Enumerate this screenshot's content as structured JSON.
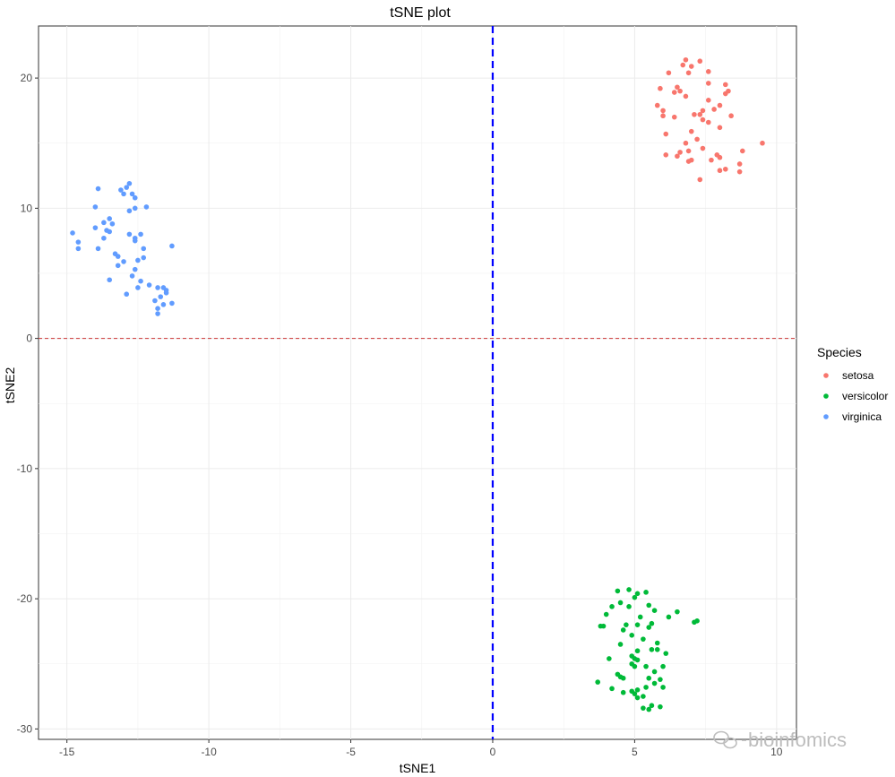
{
  "chart_data": {
    "type": "scatter",
    "title": "tSNE plot",
    "xlabel": "tSNE1",
    "ylabel": "tSNE2",
    "xlim": [
      -16,
      10.7
    ],
    "ylim": [
      -30.8,
      24
    ],
    "x_ticks": [
      -15,
      -10,
      -5,
      0,
      5,
      10
    ],
    "y_ticks": [
      -30,
      -20,
      -10,
      0,
      10,
      20
    ],
    "grid": true,
    "legend": {
      "title": "Species",
      "position": "right"
    },
    "reference_lines": [
      {
        "orientation": "vertical",
        "value": 0,
        "style": "dashed",
        "color": "#0000ff"
      },
      {
        "orientation": "horizontal",
        "value": 0,
        "style": "dashed",
        "color": "#cc3333"
      }
    ],
    "series": [
      {
        "name": "setosa",
        "color": "#F8766D",
        "points": [
          [
            6.8,
            21.4
          ],
          [
            7.3,
            21.3
          ],
          [
            6.7,
            21.0
          ],
          [
            7.0,
            20.9
          ],
          [
            6.2,
            20.4
          ],
          [
            7.6,
            20.5
          ],
          [
            6.9,
            20.4
          ],
          [
            5.9,
            19.2
          ],
          [
            6.5,
            19.3
          ],
          [
            6.6,
            19.0
          ],
          [
            6.4,
            18.9
          ],
          [
            7.6,
            19.6
          ],
          [
            8.2,
            19.5
          ],
          [
            8.3,
            19.0
          ],
          [
            8.2,
            18.8
          ],
          [
            6.8,
            18.6
          ],
          [
            5.8,
            17.9
          ],
          [
            7.6,
            18.3
          ],
          [
            8.0,
            17.9
          ],
          [
            7.4,
            17.5
          ],
          [
            7.8,
            17.6
          ],
          [
            6.0,
            17.5
          ],
          [
            7.3,
            17.2
          ],
          [
            6.0,
            17.1
          ],
          [
            7.1,
            17.2
          ],
          [
            6.4,
            17.0
          ],
          [
            8.4,
            17.1
          ],
          [
            7.4,
            16.8
          ],
          [
            7.6,
            16.6
          ],
          [
            8.0,
            16.2
          ],
          [
            7.0,
            15.9
          ],
          [
            6.1,
            15.7
          ],
          [
            7.2,
            15.3
          ],
          [
            6.8,
            15.0
          ],
          [
            9.5,
            15.0
          ],
          [
            7.4,
            14.6
          ],
          [
            8.8,
            14.4
          ],
          [
            6.9,
            14.4
          ],
          [
            6.6,
            14.3
          ],
          [
            7.9,
            14.1
          ],
          [
            8.0,
            13.9
          ],
          [
            6.1,
            14.1
          ],
          [
            6.5,
            14.0
          ],
          [
            7.0,
            13.7
          ],
          [
            6.9,
            13.6
          ],
          [
            7.7,
            13.7
          ],
          [
            8.7,
            13.4
          ],
          [
            8.2,
            13.0
          ],
          [
            8.0,
            12.9
          ],
          [
            8.7,
            12.8
          ],
          [
            7.3,
            12.2
          ]
        ]
      },
      {
        "name": "versicolor",
        "color": "#00BA38",
        "points": [
          [
            4.8,
            -19.3
          ],
          [
            4.4,
            -19.4
          ],
          [
            5.1,
            -19.6
          ],
          [
            5.4,
            -19.5
          ],
          [
            5.0,
            -19.9
          ],
          [
            4.5,
            -20.3
          ],
          [
            4.8,
            -20.6
          ],
          [
            4.2,
            -20.6
          ],
          [
            5.5,
            -20.5
          ],
          [
            5.7,
            -20.9
          ],
          [
            6.5,
            -21.0
          ],
          [
            4.0,
            -21.2
          ],
          [
            5.2,
            -21.4
          ],
          [
            6.2,
            -21.4
          ],
          [
            7.2,
            -21.7
          ],
          [
            7.1,
            -21.8
          ],
          [
            4.7,
            -22.0
          ],
          [
            5.6,
            -21.9
          ],
          [
            3.8,
            -22.1
          ],
          [
            3.9,
            -22.1
          ],
          [
            5.1,
            -22.0
          ],
          [
            4.6,
            -22.4
          ],
          [
            5.5,
            -22.2
          ],
          [
            4.9,
            -22.8
          ],
          [
            5.3,
            -23.1
          ],
          [
            5.8,
            -23.4
          ],
          [
            4.5,
            -23.5
          ],
          [
            5.6,
            -23.9
          ],
          [
            5.8,
            -23.9
          ],
          [
            5.1,
            -24.0
          ],
          [
            6.1,
            -24.2
          ],
          [
            4.9,
            -24.4
          ],
          [
            4.1,
            -24.6
          ],
          [
            5.0,
            -24.6
          ],
          [
            5.1,
            -24.7
          ],
          [
            4.9,
            -25.0
          ],
          [
            5.4,
            -25.2
          ],
          [
            5.0,
            -25.2
          ],
          [
            6.0,
            -25.2
          ],
          [
            5.7,
            -25.6
          ],
          [
            4.4,
            -25.8
          ],
          [
            4.5,
            -26.0
          ],
          [
            5.5,
            -26.1
          ],
          [
            4.6,
            -26.1
          ],
          [
            5.9,
            -26.2
          ],
          [
            3.7,
            -26.4
          ],
          [
            5.7,
            -26.5
          ],
          [
            4.2,
            -26.9
          ],
          [
            5.4,
            -26.8
          ],
          [
            6.0,
            -26.8
          ],
          [
            5.1,
            -27.0
          ],
          [
            4.6,
            -27.2
          ],
          [
            4.9,
            -27.1
          ],
          [
            5.0,
            -27.3
          ],
          [
            5.3,
            -27.5
          ],
          [
            5.1,
            -27.6
          ],
          [
            5.6,
            -28.2
          ],
          [
            5.3,
            -28.4
          ],
          [
            5.5,
            -28.5
          ],
          [
            5.9,
            -28.3
          ]
        ]
      },
      {
        "name": "virginica",
        "color": "#619CFF",
        "points": [
          [
            -12.8,
            11.9
          ],
          [
            -12.9,
            11.6
          ],
          [
            -13.1,
            11.4
          ],
          [
            -13.0,
            11.1
          ],
          [
            -12.7,
            11.1
          ],
          [
            -13.9,
            11.5
          ],
          [
            -12.6,
            10.8
          ],
          [
            -14.0,
            10.1
          ],
          [
            -12.2,
            10.1
          ],
          [
            -12.8,
            9.8
          ],
          [
            -12.6,
            10.0
          ],
          [
            -13.5,
            9.2
          ],
          [
            -13.7,
            8.9
          ],
          [
            -13.4,
            8.8
          ],
          [
            -13.6,
            8.3
          ],
          [
            -14.0,
            8.5
          ],
          [
            -13.7,
            7.7
          ],
          [
            -13.5,
            8.2
          ],
          [
            -14.8,
            8.1
          ],
          [
            -12.8,
            8.0
          ],
          [
            -12.4,
            8.0
          ],
          [
            -12.6,
            7.7
          ],
          [
            -12.6,
            7.5
          ],
          [
            -14.6,
            7.4
          ],
          [
            -11.3,
            7.1
          ],
          [
            -12.3,
            6.9
          ],
          [
            -14.6,
            6.9
          ],
          [
            -13.9,
            6.9
          ],
          [
            -13.3,
            6.5
          ],
          [
            -13.2,
            6.3
          ],
          [
            -12.3,
            6.2
          ],
          [
            -12.5,
            6.0
          ],
          [
            -13.0,
            5.9
          ],
          [
            -13.2,
            5.6
          ],
          [
            -12.6,
            5.3
          ],
          [
            -12.7,
            4.8
          ],
          [
            -13.5,
            4.5
          ],
          [
            -12.4,
            4.4
          ],
          [
            -12.1,
            4.1
          ],
          [
            -11.8,
            3.9
          ],
          [
            -12.5,
            3.9
          ],
          [
            -11.6,
            3.9
          ],
          [
            -11.5,
            3.7
          ],
          [
            -11.5,
            3.5
          ],
          [
            -12.9,
            3.4
          ],
          [
            -11.7,
            3.2
          ],
          [
            -11.9,
            2.9
          ],
          [
            -11.3,
            2.7
          ],
          [
            -11.6,
            2.6
          ],
          [
            -11.8,
            2.3
          ],
          [
            -11.8,
            1.9
          ]
        ]
      }
    ]
  },
  "watermark": {
    "text": "bioinfomics",
    "icon": "wechat-icon"
  }
}
